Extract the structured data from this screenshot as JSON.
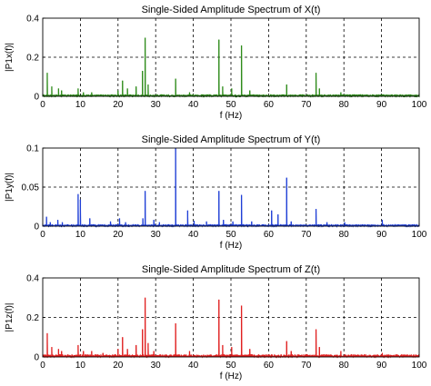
{
  "chart_data": [
    {
      "type": "line",
      "title": "Single-Sided Amplitude Spectrum of X(t)",
      "xlabel": "f (Hz)",
      "ylabel": "|P1x(f)|",
      "xlim": [
        0,
        100
      ],
      "ylim": [
        0,
        0.4
      ],
      "xticks": [
        0,
        10,
        20,
        30,
        40,
        50,
        60,
        70,
        80,
        90,
        100
      ],
      "yticks": [
        0,
        0.2,
        0.4
      ],
      "ytick_labels": [
        "0",
        "0.2",
        "0.4"
      ],
      "grid": true,
      "color": "#2e8b1a",
      "baseline": 0.006,
      "peaks": [
        {
          "x": 1.2,
          "y": 0.12
        },
        {
          "x": 2.4,
          "y": 0.05
        },
        {
          "x": 4.2,
          "y": 0.04
        },
        {
          "x": 5.0,
          "y": 0.03
        },
        {
          "x": 9.4,
          "y": 0.04
        },
        {
          "x": 10.8,
          "y": 0.02
        },
        {
          "x": 13.0,
          "y": 0.02
        },
        {
          "x": 20.0,
          "y": 0.03
        },
        {
          "x": 21.2,
          "y": 0.08
        },
        {
          "x": 22.5,
          "y": 0.04
        },
        {
          "x": 24.8,
          "y": 0.05
        },
        {
          "x": 26.5,
          "y": 0.13
        },
        {
          "x": 27.2,
          "y": 0.3
        },
        {
          "x": 28.0,
          "y": 0.06
        },
        {
          "x": 35.3,
          "y": 0.09
        },
        {
          "x": 39.0,
          "y": 0.02
        },
        {
          "x": 46.8,
          "y": 0.29
        },
        {
          "x": 47.8,
          "y": 0.05
        },
        {
          "x": 50.2,
          "y": 0.04
        },
        {
          "x": 52.8,
          "y": 0.26
        },
        {
          "x": 55.0,
          "y": 0.03
        },
        {
          "x": 64.8,
          "y": 0.06
        },
        {
          "x": 72.6,
          "y": 0.12
        },
        {
          "x": 73.5,
          "y": 0.04
        },
        {
          "x": 79.2,
          "y": 0.02
        }
      ]
    },
    {
      "type": "line",
      "title": "Single-Sided Amplitude Spectrum of Y(t)",
      "xlabel": "f (Hz)",
      "ylabel": "|P1y(f)|",
      "xlim": [
        0,
        100
      ],
      "ylim": [
        0,
        0.1
      ],
      "xticks": [
        0,
        10,
        20,
        30,
        40,
        50,
        60,
        70,
        80,
        90,
        100
      ],
      "yticks": [
        0,
        0.05,
        0.1
      ],
      "ytick_labels": [
        "0",
        "0.05",
        "0.1"
      ],
      "grid": true,
      "color": "#1f3fd6",
      "baseline": 0.0015,
      "peaks": [
        {
          "x": 1.0,
          "y": 0.012
        },
        {
          "x": 2.0,
          "y": 0.005
        },
        {
          "x": 4.0,
          "y": 0.008
        },
        {
          "x": 5.2,
          "y": 0.005
        },
        {
          "x": 9.4,
          "y": 0.041
        },
        {
          "x": 10.0,
          "y": 0.034
        },
        {
          "x": 12.5,
          "y": 0.01
        },
        {
          "x": 18.0,
          "y": 0.006
        },
        {
          "x": 20.4,
          "y": 0.01
        },
        {
          "x": 22.0,
          "y": 0.005
        },
        {
          "x": 26.6,
          "y": 0.01
        },
        {
          "x": 27.2,
          "y": 0.045
        },
        {
          "x": 29.5,
          "y": 0.008
        },
        {
          "x": 31.0,
          "y": 0.005
        },
        {
          "x": 35.3,
          "y": 0.1
        },
        {
          "x": 38.5,
          "y": 0.02
        },
        {
          "x": 40.2,
          "y": 0.007
        },
        {
          "x": 43.5,
          "y": 0.006
        },
        {
          "x": 46.8,
          "y": 0.045
        },
        {
          "x": 48.0,
          "y": 0.008
        },
        {
          "x": 50.5,
          "y": 0.006
        },
        {
          "x": 52.8,
          "y": 0.04
        },
        {
          "x": 55.5,
          "y": 0.006
        },
        {
          "x": 60.8,
          "y": 0.02
        },
        {
          "x": 62.5,
          "y": 0.015
        },
        {
          "x": 64.8,
          "y": 0.062
        },
        {
          "x": 66.0,
          "y": 0.006
        },
        {
          "x": 72.6,
          "y": 0.022
        },
        {
          "x": 75.5,
          "y": 0.005
        },
        {
          "x": 80.2,
          "y": 0.005
        },
        {
          "x": 90.2,
          "y": 0.008
        }
      ]
    },
    {
      "type": "line",
      "title": "Single-Sided Amplitude Spectrum of Z(t)",
      "xlabel": "f (Hz)",
      "ylabel": "|P1z(f)|",
      "xlim": [
        0,
        100
      ],
      "ylim": [
        0,
        0.4
      ],
      "xticks": [
        0,
        10,
        20,
        30,
        40,
        50,
        60,
        70,
        80,
        90,
        100
      ],
      "yticks": [
        0,
        0.2,
        0.4
      ],
      "ytick_labels": [
        "0",
        "0.2",
        "0.4"
      ],
      "grid": true,
      "color": "#e02020",
      "baseline": 0.008,
      "peaks": [
        {
          "x": 1.2,
          "y": 0.12
        },
        {
          "x": 2.4,
          "y": 0.05
        },
        {
          "x": 4.2,
          "y": 0.04
        },
        {
          "x": 5.0,
          "y": 0.03
        },
        {
          "x": 9.4,
          "y": 0.06
        },
        {
          "x": 10.8,
          "y": 0.03
        },
        {
          "x": 13.0,
          "y": 0.03
        },
        {
          "x": 16.0,
          "y": 0.02
        },
        {
          "x": 20.0,
          "y": 0.04
        },
        {
          "x": 21.2,
          "y": 0.1
        },
        {
          "x": 22.5,
          "y": 0.04
        },
        {
          "x": 24.8,
          "y": 0.06
        },
        {
          "x": 26.5,
          "y": 0.14
        },
        {
          "x": 27.2,
          "y": 0.3
        },
        {
          "x": 28.0,
          "y": 0.07
        },
        {
          "x": 29.5,
          "y": 0.03
        },
        {
          "x": 35.3,
          "y": 0.17
        },
        {
          "x": 39.0,
          "y": 0.03
        },
        {
          "x": 46.8,
          "y": 0.29
        },
        {
          "x": 47.8,
          "y": 0.06
        },
        {
          "x": 50.2,
          "y": 0.05
        },
        {
          "x": 52.8,
          "y": 0.26
        },
        {
          "x": 55.0,
          "y": 0.04
        },
        {
          "x": 64.8,
          "y": 0.08
        },
        {
          "x": 66.0,
          "y": 0.03
        },
        {
          "x": 72.6,
          "y": 0.14
        },
        {
          "x": 73.5,
          "y": 0.05
        },
        {
          "x": 79.2,
          "y": 0.03
        },
        {
          "x": 90.2,
          "y": 0.02
        }
      ]
    }
  ]
}
